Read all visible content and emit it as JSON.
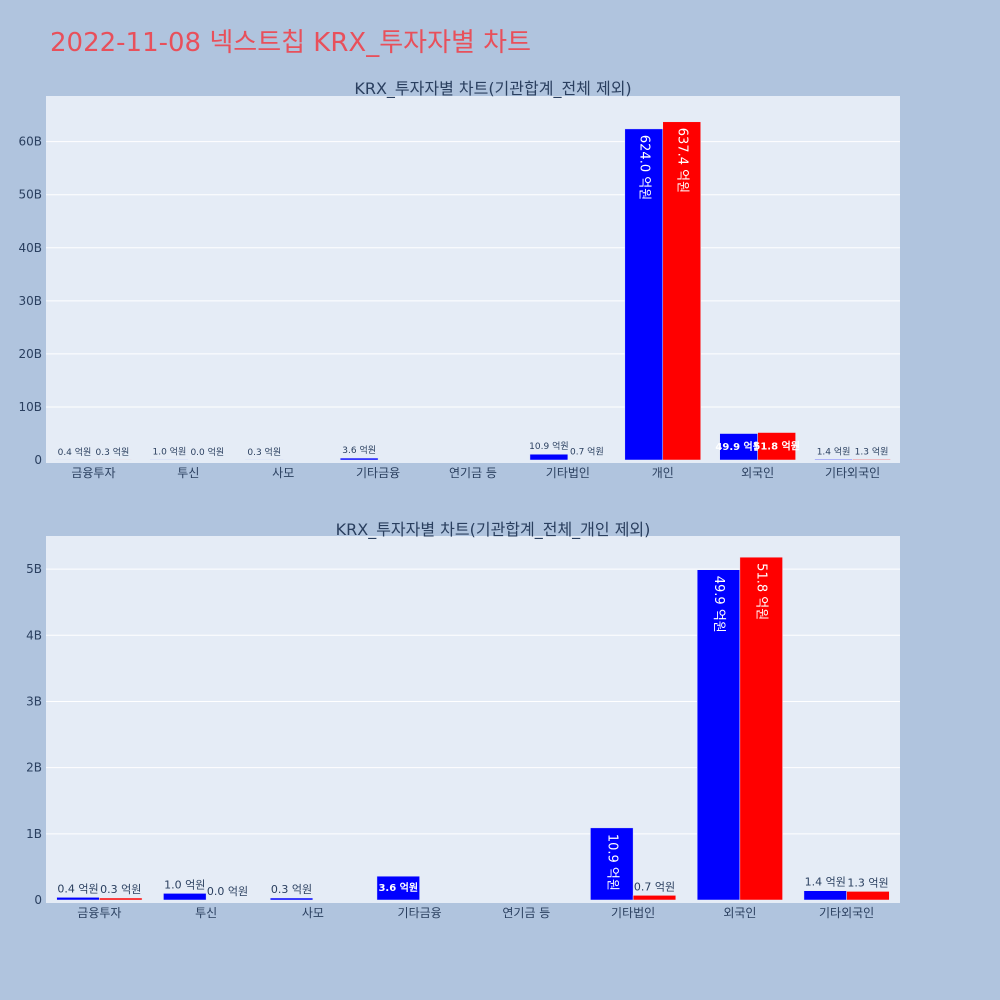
{
  "title": "2022-11-08 넥스트칩 KRX_투자자별 차트",
  "colors": {
    "page_bg": "#b0c4de",
    "plot_bg": "#e5ecf6",
    "grid": "#ffffff",
    "title": "#e8505b",
    "series_a": "#0000ff",
    "series_b": "#ff0000"
  },
  "chart_data": [
    {
      "type": "bar",
      "title": "KRX_투자자별 차트(기관합계_전체 제외)",
      "categories": [
        "금융투자",
        "투신",
        "사모",
        "기타금융",
        "연기금 등",
        "기타법인",
        "개인",
        "외국인",
        "기타외국인"
      ],
      "yticks": [
        "0",
        "10B",
        "20B",
        "30B",
        "40B",
        "50B",
        "60B"
      ],
      "ylim": [
        0,
        68600000000
      ],
      "series": [
        {
          "values": [
            40000000,
            100000000,
            30000000,
            360000000,
            0,
            1090000000,
            62400000000,
            4990000000,
            140000000
          ],
          "labels": [
            "0.4 억원",
            "1.0 억원",
            "0.3 억원",
            "3.6 억원",
            "",
            "10.9 억원",
            "624.0 억원",
            "49.9 억원",
            "1.4 억원"
          ]
        },
        {
          "values": [
            30000000,
            0,
            0,
            0,
            0,
            70000000,
            63740000000,
            5180000000,
            130000000
          ],
          "labels": [
            "0.3 억원",
            "0.0 억원",
            "",
            "",
            "",
            "0.7 억원",
            "637.4 억원",
            "51.8 억원",
            "1.3 억원"
          ]
        }
      ],
      "grid": true
    },
    {
      "type": "bar",
      "title": "KRX_투자자별 차트(기관합계_전체_개인 제외)",
      "categories": [
        "금융투자",
        "투신",
        "사모",
        "기타금융",
        "연기금 등",
        "기타법인",
        "외국인",
        "기타외국인"
      ],
      "yticks": [
        "0",
        "1B",
        "2B",
        "3B",
        "4B",
        "5B"
      ],
      "ylim": [
        0,
        5500000000
      ],
      "series": [
        {
          "values": [
            40000000,
            100000000,
            30000000,
            360000000,
            0,
            1090000000,
            4990000000,
            140000000
          ],
          "labels": [
            "0.4 억원",
            "1.0 억원",
            "0.3 억원",
            "3.6 억원",
            "",
            "10.9 억원",
            "49.9 억원",
            "1.4 억원"
          ]
        },
        {
          "values": [
            30000000,
            0,
            0,
            0,
            0,
            70000000,
            5180000000,
            130000000
          ],
          "labels": [
            "0.3 억원",
            "0.0 억원",
            "",
            "",
            "",
            "0.7 억원",
            "51.8 억원",
            "1.3 억원"
          ]
        }
      ],
      "grid": true
    }
  ]
}
